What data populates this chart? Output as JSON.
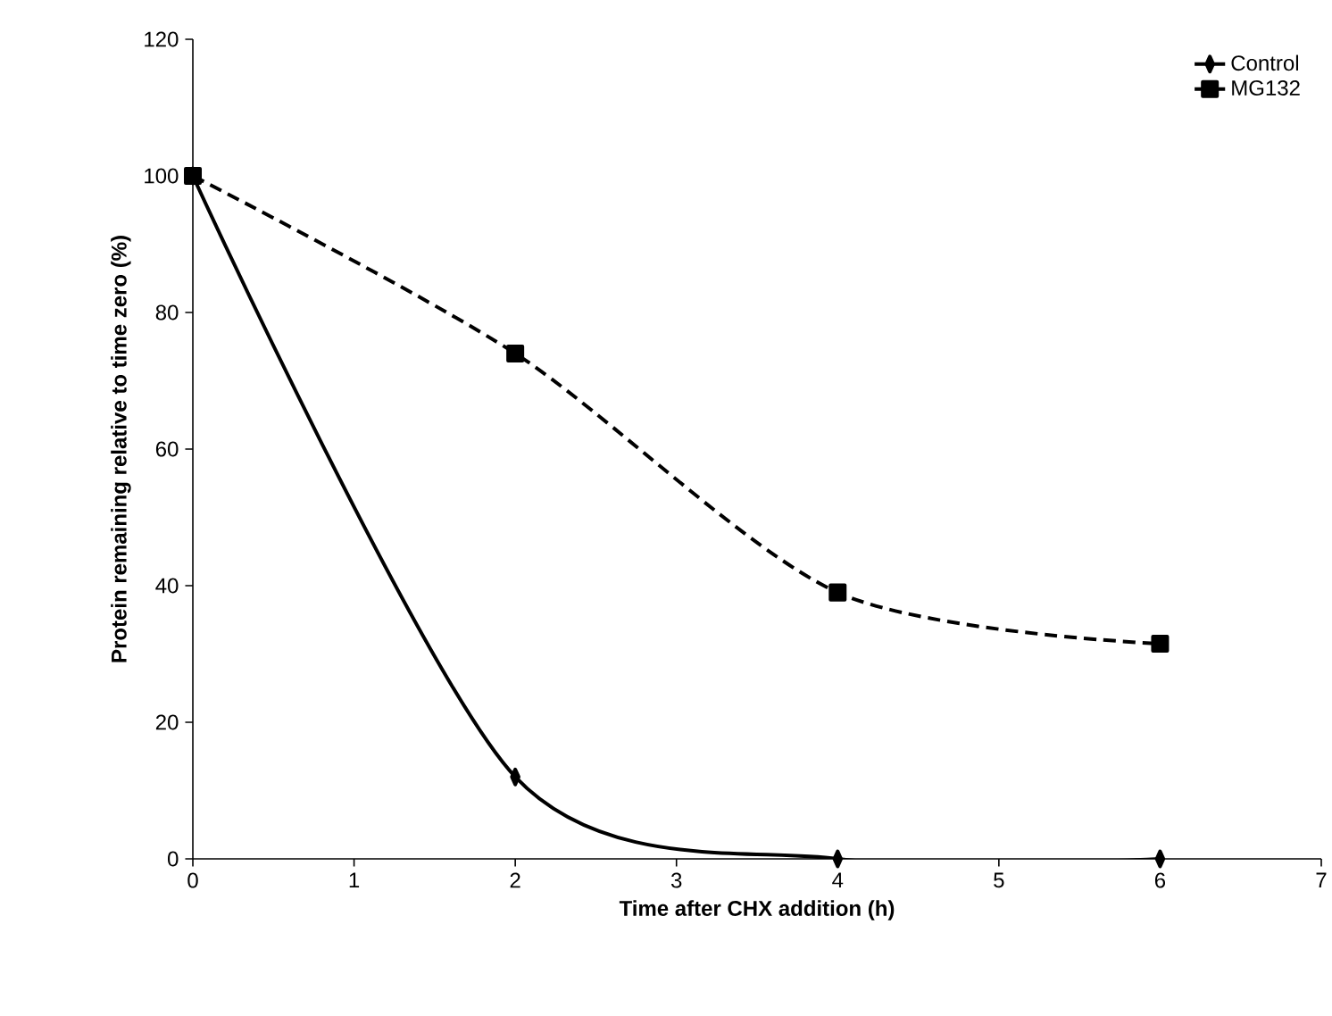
{
  "chart_data": {
    "type": "line",
    "xlabel": "Time after CHX addition (h)",
    "ylabel": "Protein remaining relative to time zero (%)",
    "x": [
      0,
      2,
      4,
      6
    ],
    "series": [
      {
        "name": "Control",
        "color": "#000000",
        "values": [
          100,
          12,
          0,
          0
        ],
        "marker": "diamond",
        "line_style": "solid"
      },
      {
        "name": "MG132",
        "color": "#000000",
        "values": [
          100,
          74,
          39,
          31.5
        ],
        "marker": "square",
        "line_style": "dashed"
      }
    ],
    "xlim": [
      0,
      7
    ],
    "xticks": [
      0,
      1,
      2,
      3,
      4,
      5,
      6,
      7
    ],
    "ylim": [
      0,
      120
    ],
    "yticks": [
      0,
      20,
      40,
      60,
      80,
      100,
      120
    ],
    "grid": false,
    "legend": "top right"
  }
}
